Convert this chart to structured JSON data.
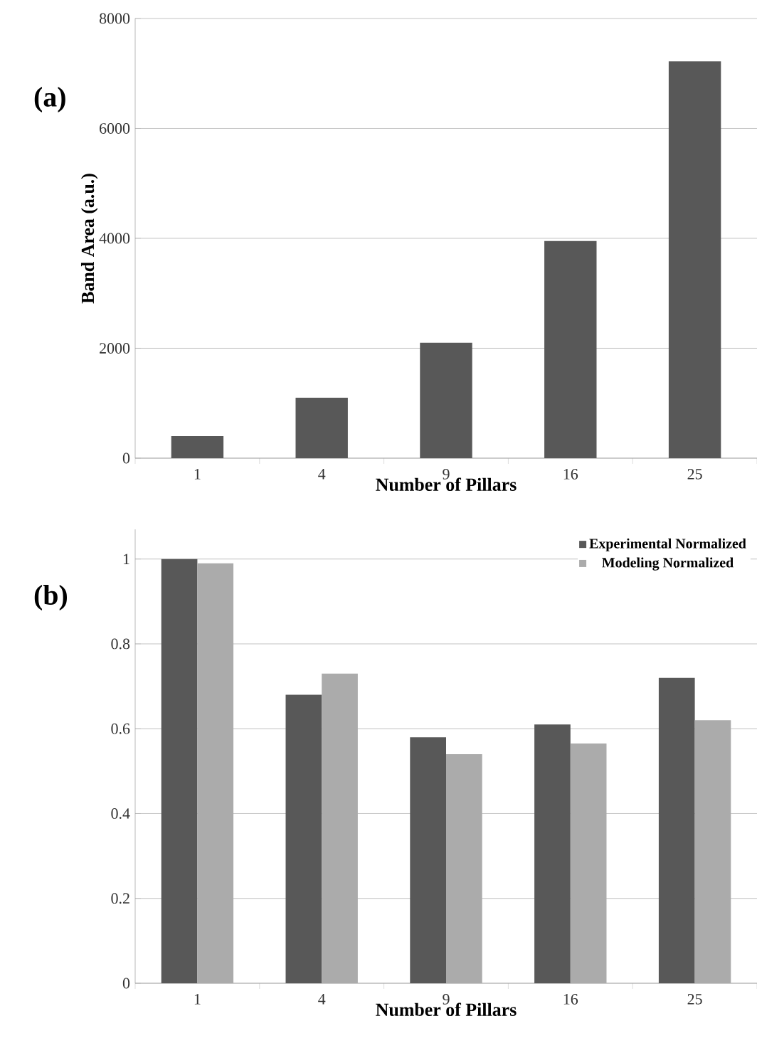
{
  "chart_data": [
    {
      "type": "bar",
      "ylabel": "Band Area (a.u.)",
      "xlabel": "Number of Pillars",
      "annotations": [
        "(a)"
      ],
      "categories": [
        "1",
        "4",
        "9",
        "16",
        "25"
      ],
      "values": [
        400,
        1100,
        2100,
        3950,
        7220
      ],
      "color": "#585858",
      "ylim": [
        0,
        8000
      ],
      "yticks": [
        0,
        2000,
        4000,
        6000,
        8000
      ],
      "grid": "y"
    },
    {
      "type": "bar",
      "xlabel": "Number of Pillars",
      "annotations": [
        "(b)"
      ],
      "categories": [
        "1",
        "4",
        "9",
        "16",
        "25"
      ],
      "series": [
        {
          "name": "Experimental Normalized",
          "color": "#585858",
          "values": [
            1.0,
            0.68,
            0.58,
            0.61,
            0.72
          ]
        },
        {
          "name": "Modeling Normalized",
          "color": "#ababab",
          "values": [
            0.99,
            0.73,
            0.54,
            0.565,
            0.62
          ]
        }
      ],
      "ylim": [
        0,
        1.07
      ],
      "yticks": [
        0,
        0.2,
        0.4,
        0.6,
        0.8,
        1
      ],
      "grid": "y",
      "legend": "top right"
    }
  ]
}
